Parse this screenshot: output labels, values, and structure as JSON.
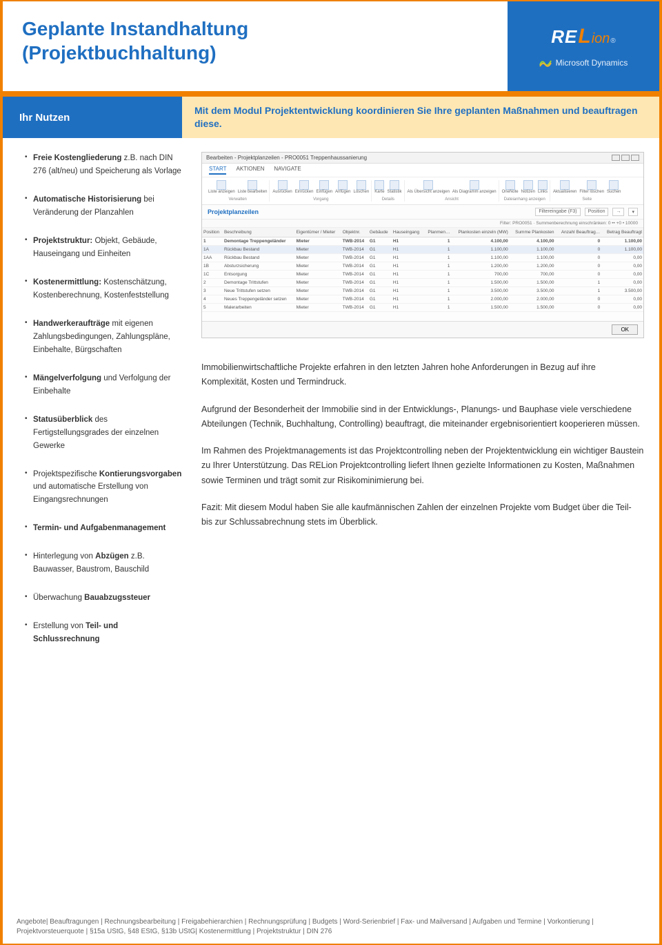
{
  "header": {
    "title_line1": "Geplante Instandhaltung",
    "title_line2": "(Projektbuchhaltung)",
    "brand_re": "RE",
    "brand_l": "L",
    "brand_ion": "ion",
    "brand_reg": "®",
    "ms_dynamics": "Microsoft Dynamics"
  },
  "subbanner": {
    "left": "Ihr Nutzen",
    "right": "Mit dem Modul Projektentwicklung koordinieren Sie Ihre geplanten Maßnahmen und beauftragen diese."
  },
  "bullets": {
    "b1_a": "Freie Kostengliederung",
    "b1_b": " z.B. nach DIN 276 (alt/neu) und Speicherung als Vorlage",
    "b2_a": "Automatische Historisierung",
    "b2_b": " bei Veränderung der Planzahlen",
    "b3_a": "Projektstruktur:",
    "b3_b": " Objekt, Gebäude, Hauseingang und Einheiten",
    "b4_a": "Kostenermittlung:",
    "b4_b": " Kostenschätzung, Kostenberechnung, Kostenfeststellung",
    "b5_a": "Handwerkeraufträge",
    "b5_b": " mit eigenen Zahlungsbedingungen, Zahlungspläne, Einbehalte, Bürgschaften",
    "b6_a": "Mängelverfolgung",
    "b6_b": " und Verfolgung der Einbehalte",
    "b7_a": "Statusüberblick",
    "b7_b": " des Fertigstellungsgrades der einzelnen Gewerke",
    "b8_a": "Projektspezifische ",
    "b8_b": "Kontierungsvorgaben",
    "b8_c": " und automatische Erstellung von Eingangsrechnungen",
    "b9_a": "Termin- und Aufgabenmanagement",
    "b10_a": "Hinterlegung von ",
    "b10_b": "Abzügen",
    "b10_c": " z.B. Bauwasser, Baustrom, Bauschild",
    "b11_a": "Überwachung ",
    "b11_b": "Bauabzugssteuer",
    "b12_a": "Erstellung von ",
    "b12_b": "Teil- und Schlussrechnung"
  },
  "screenshot": {
    "titlebar": "Bearbeiten - Projektplanzeilen - PRO0051 Treppenhaussanierung",
    "tab_start": "START",
    "tab_aktionen": "AKTIONEN",
    "tab_navigate": "NAVIGATE",
    "grp_verwalten": "Verwalten",
    "grp_vorgang": "Vorgang",
    "grp_details": "Details",
    "grp_ansicht": "Ansicht",
    "grp_datei": "Dateianhang anzeigen",
    "grp_seite": "Seite",
    "btn_liste_anzeigen": "Liste anzeigen",
    "btn_liste_bearbeiten": "Liste bearbeiten",
    "btn_ausruecken": "Ausrücken",
    "btn_einruecken": "Einrücken",
    "btn_einfuegen": "Einfügen",
    "btn_anfuegen": "Anfügen",
    "btn_loeschen": "Löschen",
    "btn_karte": "Karte",
    "btn_statistik": "Statistik",
    "btn_als_uebersicht": "Als Übersicht anzeigen",
    "btn_als_diagramm": "Als Diagramm anzeigen",
    "btn_onenote": "OneNote",
    "btn_notizen": "Notizen",
    "btn_links": "Links",
    "btn_aktualisieren": "Aktualisieren",
    "btn_filter_loeschen": "Filter löschen",
    "btn_suchen": "Suchen",
    "section_title": "Projektplanzeilen",
    "filter_eingabe": "Filtereingabe (F3)",
    "filter_position": "Position",
    "filter_line": "Filter: PRO0051 · Summenberechnung einschränken: 0 •• +0 • 10000",
    "cols": {
      "c0": "Position",
      "c1": "Beschreibung",
      "c2": "Eigentümer / Mieter",
      "c3": "Objektnr.",
      "c4": "Gebäude",
      "c5": "Hauseingang",
      "c6": "Planmen…",
      "c7": "Plankosten einzeln (MW)",
      "c8": "Summe Plankosten",
      "c9": "Anzahl Beauftrag…",
      "c10": "Betrag Beauftragt"
    },
    "rows": [
      {
        "pos": "1",
        "desc": "Demontage Treppengeländer",
        "em": "Mieter",
        "obj": "TWB-2014",
        "geb": "G1",
        "he": "H1",
        "pm": "1",
        "pke": "4.100,00",
        "spk": "4.100,00",
        "anz": "0",
        "ba": "1.100,00",
        "hl": false,
        "bold": true
      },
      {
        "pos": "1A",
        "desc": "Rückbau Bestand",
        "em": "Mieter",
        "obj": "TWB-2014",
        "geb": "G1",
        "he": "H1",
        "pm": "1",
        "pke": "1.100,00",
        "spk": "1.100,00",
        "anz": "0",
        "ba": "1.100,00",
        "hl": true,
        "bold": false
      },
      {
        "pos": "1AA",
        "desc": "Rückbau Bestand",
        "em": "Mieter",
        "obj": "TWB-2014",
        "geb": "G1",
        "he": "H1",
        "pm": "1",
        "pke": "1.100,00",
        "spk": "1.100,00",
        "anz": "0",
        "ba": "0,00",
        "hl": false,
        "bold": false
      },
      {
        "pos": "1B",
        "desc": "Absturzsicherung",
        "em": "Mieter",
        "obj": "TWB-2014",
        "geb": "G1",
        "he": "H1",
        "pm": "1",
        "pke": "1.200,00",
        "spk": "1.200,00",
        "anz": "0",
        "ba": "0,00",
        "hl": false,
        "bold": false
      },
      {
        "pos": "1C",
        "desc": "Entsorgung",
        "em": "Mieter",
        "obj": "TWB-2014",
        "geb": "G1",
        "he": "H1",
        "pm": "1",
        "pke": "700,00",
        "spk": "700,00",
        "anz": "0",
        "ba": "0,00",
        "hl": false,
        "bold": false
      },
      {
        "pos": "2",
        "desc": "Demontage Trittstufen",
        "em": "Mieter",
        "obj": "TWB-2014",
        "geb": "G1",
        "he": "H1",
        "pm": "1",
        "pke": "1.500,00",
        "spk": "1.500,00",
        "anz": "1",
        "ba": "0,00",
        "hl": false,
        "bold": false
      },
      {
        "pos": "3",
        "desc": "Neue Trittstufen setzen",
        "em": "Mieter",
        "obj": "TWB-2014",
        "geb": "G1",
        "he": "H1",
        "pm": "1",
        "pke": "3.500,00",
        "spk": "3.500,00",
        "anz": "1",
        "ba": "3.500,00",
        "hl": false,
        "bold": false
      },
      {
        "pos": "4",
        "desc": "Neues Treppengeländer setzen",
        "em": "Mieter",
        "obj": "TWB-2014",
        "geb": "G1",
        "he": "H1",
        "pm": "1",
        "pke": "2.000,00",
        "spk": "2.000,00",
        "anz": "0",
        "ba": "0,00",
        "hl": false,
        "bold": false
      },
      {
        "pos": "5",
        "desc": "Malerarbeiten",
        "em": "Mieter",
        "obj": "TWB-2014",
        "geb": "G1",
        "he": "H1",
        "pm": "1",
        "pke": "1.500,00",
        "spk": "1.500,00",
        "anz": "0",
        "ba": "0,00",
        "hl": false,
        "bold": false
      }
    ],
    "ok_btn": "OK"
  },
  "copy": {
    "p1": "Immobilienwirtschaftliche Projekte erfahren in den letzten Jahren hohe Anforderungen in Bezug auf ihre Komplexität, Kosten und Termindruck.",
    "p2": "Aufgrund der Besonderheit der Immobilie sind in der Entwicklungs-, Planungs- und Bauphase viele verschiedene Abteilungen (Technik, Buchhaltung, Controlling) beauftragt, die miteinander ergebnisorientiert kooperieren müssen.",
    "p3": "Im Rahmen des Projektmanagements ist das Projektcontrolling neben der Projektentwicklung ein wichtiger Baustein zu Ihrer Unterstützung. Das RELion Projektcontrolling liefert Ihnen gezielte Informationen zu Kosten, Maßnahmen sowie Terminen und trägt somit zur Risikominimierung bei.",
    "p4": "Fazit: Mit diesem Modul haben Sie alle kaufmännischen Zahlen der einzelnen Projekte vom Budget über die Teil- bis zur Schlussabrechnung stets im Überblick."
  },
  "footer_keywords": "Angebote| Beauftragungen | Rechnungsbearbeitung | Freigabehierarchien | Rechnungsprüfung | Budgets | Word-Serienbrief | Fax- und Mailversand | Aufgaben und Termine | Vorkontierung | Projektvorsteuerquote | §15a UStG, §48 EStG, §13b UStG| Kostenermittlung | Projektstruktur | DIN 276"
}
